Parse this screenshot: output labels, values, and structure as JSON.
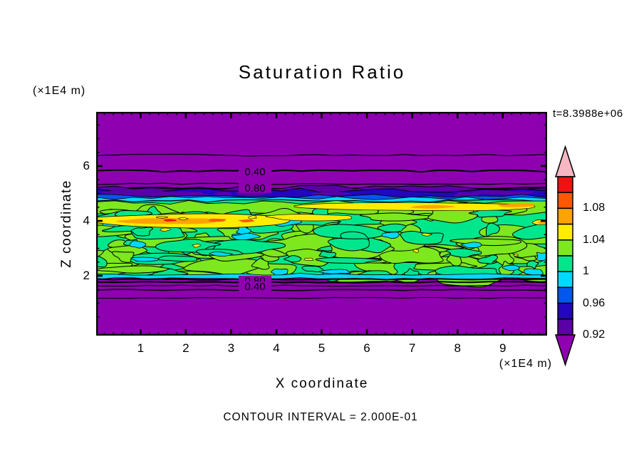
{
  "title": "Saturation Ratio",
  "annotations": {
    "time": "t=8.3988e+06",
    "contour_interval_note": "CONTOUR INTERVAL = 2.000E-01",
    "y_axis_unit": "(×1E4 m)",
    "x_axis_unit": "(×1E4 m)"
  },
  "axes": {
    "x": {
      "label": "X coordinate",
      "tick_labels": [
        "1",
        "2",
        "3",
        "4",
        "5",
        "6",
        "7",
        "8",
        "9"
      ],
      "range": [
        0,
        10
      ]
    },
    "z": {
      "label": "Z coordinate",
      "tick_labels": [
        "2",
        "4",
        "6"
      ],
      "range": [
        0,
        8.2
      ]
    }
  },
  "chart_data": {
    "type": "heatmap",
    "subtype": "filled-contour",
    "title": "Saturation Ratio",
    "xlabel": "X coordinate",
    "ylabel": "Z coordinate",
    "x_unit": "(×1E4 m)",
    "z_unit": "(×1E4 m)",
    "xlim": [
      0,
      10
    ],
    "zlim": [
      0,
      8.2
    ],
    "x_ticks": [
      1,
      2,
      3,
      4,
      5,
      6,
      7,
      8,
      9
    ],
    "z_ticks": [
      2,
      4,
      6
    ],
    "time_annotation": "t=8.3988e+06",
    "contour_interval": 0.2,
    "contour_interval_text": "CONTOUR INTERVAL = 2.000E-01",
    "colorbar": {
      "tick_labels": [
        "1.08",
        "1.04",
        "1",
        "0.96",
        "0.92"
      ],
      "levels": [
        0.9,
        0.92,
        0.94,
        0.96,
        0.98,
        1.0,
        1.02,
        1.04,
        1.06,
        1.08,
        1.1
      ],
      "band_colors_low_to_high": [
        "#5A00A8",
        "#2206C0",
        "#0457EE",
        "#00D9FF",
        "#00E68C",
        "#7DE81E",
        "#FFEC00",
        "#FFA300",
        "#FF5800",
        "#F01212"
      ],
      "under_color": "#8E00B0",
      "over_color": "#F7B6C2"
    },
    "palette": {
      "purple": "#8E00B0",
      "violet": "#5A00A8",
      "navy": "#2206C0",
      "blue": "#0457EE",
      "cyan": "#00D9FF",
      "springgreen": "#00E68C",
      "chartreuse": "#7DE81E",
      "yellow": "#FFEC00",
      "orange": "#FFA300",
      "orangered": "#FF5800",
      "red": "#F01212",
      "pink": "#F7B6C2",
      "line": "#000000"
    },
    "contour_line_labels": {
      "upper": [
        "0.40",
        "0.80"
      ],
      "lower": [
        "0.80",
        "0.40"
      ]
    },
    "field_summary": {
      "description": "Saturation ratio near 0 (purple) above z≈5.1 and below z≈1.9 (×1E4 m); saturated layer (≈0.96–1.06, green mosaic) between z≈1.9 and z≈5.0; dark-blue subsaturated band (≈0.90–0.96) capping the layer near z≈5; supersaturated yellow–orange–red streaks (≈1.02–1.10) near z≈4 on the left and z≈4.6 on the right.",
      "upper_contour_lines_z": [
        6.4,
        5.85,
        5.4,
        5.2
      ],
      "lower_contour_lines_z": [
        1.77,
        1.63,
        1.48,
        1.19
      ]
    },
    "texture": {
      "seed": 13,
      "chartreuse_blobs": 95,
      "springgreen_blobs": 44,
      "cyan_blobs": 16,
      "yellow_flecks": 9
    }
  }
}
